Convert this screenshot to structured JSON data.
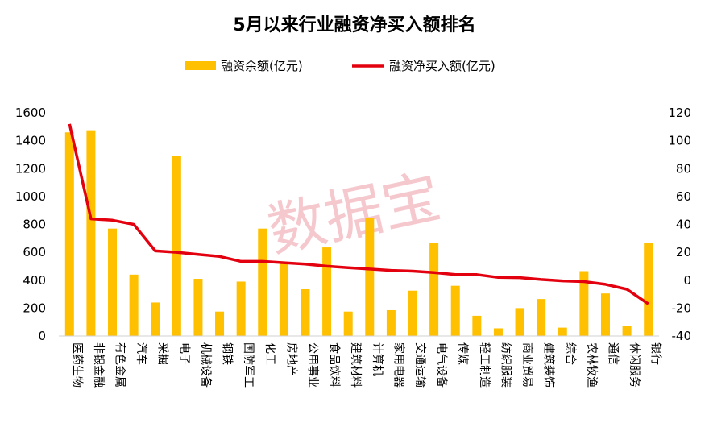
{
  "chart_data": {
    "type": "bar",
    "title": "5月以来行业融资净买入额排名",
    "categories": [
      "医药生物",
      "非银金融",
      "有色金属",
      "汽车",
      "采掘",
      "电子",
      "机械设备",
      "钢铁",
      "国防军工",
      "化工",
      "房地产",
      "公用事业",
      "食品饮料",
      "建筑材料",
      "计算机",
      "家用电器",
      "交通运输",
      "电气设备",
      "传媒",
      "轻工制造",
      "纺织服装",
      "商业贸易",
      "建筑装饰",
      "综合",
      "农林牧渔",
      "通信",
      "休闲服务",
      "银行"
    ],
    "series": [
      {
        "name": "融资余额(亿元)",
        "type": "bar",
        "axis": "left",
        "color": "#FFC000",
        "values": [
          1460,
          1475,
          770,
          440,
          240,
          1290,
          410,
          175,
          390,
          770,
          520,
          335,
          635,
          175,
          845,
          185,
          325,
          670,
          360,
          145,
          55,
          200,
          265,
          60,
          465,
          305,
          75,
          665
        ]
      },
      {
        "name": "融资净买入额(亿元)",
        "type": "line",
        "axis": "right",
        "color": "#E3000F",
        "values": [
          112,
          44,
          43,
          40,
          21,
          20,
          18.5,
          17,
          13.5,
          13.5,
          12.5,
          11.5,
          10,
          9,
          8,
          7,
          6.5,
          5.5,
          4,
          4,
          2,
          1.8,
          0.5,
          -0.5,
          -1,
          -3,
          -6.5,
          -17
        ]
      }
    ],
    "y_left": {
      "min": 0,
      "max": 1600,
      "ticks": [
        "0",
        "200",
        "400",
        "600",
        "800",
        "1000",
        "1200",
        "1400",
        "1600"
      ]
    },
    "y_right": {
      "min": -40,
      "max": 120,
      "ticks": [
        "-40",
        "-20",
        "0",
        "20",
        "40",
        "60",
        "80",
        "100",
        "120"
      ]
    },
    "legend_position": "top-center",
    "grid": false,
    "watermark": "数据宝"
  }
}
